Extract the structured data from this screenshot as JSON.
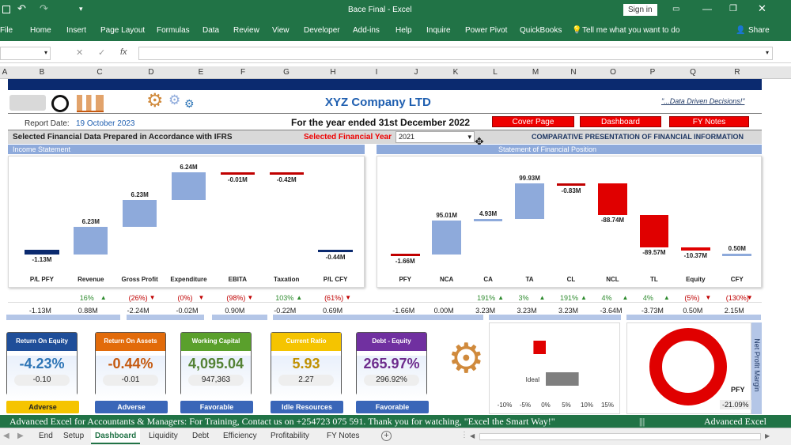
{
  "window": {
    "title": "Bace Final - Excel",
    "signin": "Sign in"
  },
  "ribbon": {
    "tabs": [
      "File",
      "Home",
      "Insert",
      "Page Layout",
      "Formulas",
      "Data",
      "Review",
      "View",
      "Developer",
      "Add-ins",
      "Help",
      "Inquire",
      "Power Pivot",
      "QuickBooks"
    ],
    "tell_me": "Tell me what you want to do",
    "share": "Share"
  },
  "formula_bar": {
    "fx": "fx"
  },
  "columns": [
    "A",
    "B",
    "C",
    "D",
    "E",
    "F",
    "G",
    "H",
    "I",
    "J",
    "K",
    "L",
    "M",
    "N",
    "O",
    "P",
    "Q",
    "R"
  ],
  "header": {
    "company": "XYZ Company LTD",
    "tagline": "\"...Data Driven Decisions!\"",
    "report_date_label": "Report Date:",
    "report_date": "19 October 2023",
    "year_title": "For the year ended 31st December 2022",
    "nav": [
      "Cover Page",
      "Dashboard",
      "FY Notes"
    ]
  },
  "filter": {
    "selected_label": "Selected Financial Data Prepared in Accordance with IFRS",
    "year_label": "Selected Financial Year",
    "year_value": "2021",
    "comparative": "COMPARATIVE PRESENTATION OF FINANCIAL INFORMATION"
  },
  "sections": {
    "income": "Income Statement",
    "position": "Statement of Financial Position"
  },
  "chart_data": [
    {
      "type": "bar",
      "subtype": "waterfall",
      "categories": [
        "P/L PFY",
        "Revenue",
        "Gross Profit",
        "Expenditure",
        "EBITA",
        "Taxation",
        "P/L CFY"
      ],
      "values": [
        -1.13,
        6.23,
        6.23,
        6.24,
        -0.01,
        -0.42,
        -0.44
      ],
      "labels": [
        "-1.13M",
        "6.23M",
        "6.23M",
        "6.24M",
        "-0.01M",
        "-0.42M",
        "-0.44M"
      ],
      "colors": [
        "#0b2a6f",
        "#8eaadb",
        "#8eaadb",
        "#8eaadb",
        "#c00000",
        "#c00000",
        "#0b2a6f"
      ],
      "changes": [
        {
          "text": "",
          "dir": ""
        },
        {
          "text": "16%",
          "dir": "up"
        },
        {
          "text": "(26%)",
          "dir": "down"
        },
        {
          "text": "(0%)",
          "dir": "down"
        },
        {
          "text": "(98%)",
          "dir": "down"
        },
        {
          "text": "103%",
          "dir": "up"
        },
        {
          "text": "(61%)",
          "dir": "down"
        }
      ],
      "prior": [
        "-1.13M",
        "0.88M",
        "-2.24M",
        "-0.02M",
        "0.90M",
        "-0.22M",
        "0.69M"
      ]
    },
    {
      "type": "bar",
      "subtype": "waterfall",
      "categories": [
        "PFY",
        "NCA",
        "CA",
        "TA",
        "CL",
        "NCL",
        "TL",
        "Equity",
        "CFY"
      ],
      "values": [
        -1.66,
        95.01,
        4.93,
        99.93,
        -0.83,
        -88.74,
        -89.57,
        -10.37,
        0.5
      ],
      "labels": [
        "-1.66M",
        "95.01M",
        "4.93M",
        "99.93M",
        "-0.83M",
        "-88.74M",
        "-89.57M",
        "-10.37M",
        "0.50M"
      ],
      "colors": [
        "#c00000",
        "#8eaadb",
        "#8eaadb",
        "#8eaadb",
        "#c00000",
        "#e00000",
        "#e00000",
        "#e00000",
        "#8eaadb"
      ],
      "changes": [
        {
          "text": "",
          "dir": ""
        },
        {
          "text": "",
          "dir": ""
        },
        {
          "text": "191%",
          "dir": "up"
        },
        {
          "text": "3%",
          "dir": "up"
        },
        {
          "text": "191%",
          "dir": "up"
        },
        {
          "text": "4%",
          "dir": "up"
        },
        {
          "text": "4%",
          "dir": "up"
        },
        {
          "text": "(5%)",
          "dir": "down"
        },
        {
          "text": "(130%)",
          "dir": "down"
        }
      ],
      "prior": [
        "-1.66M",
        "0.00M",
        "3.23M",
        "3.23M",
        "3.23M",
        "-3.64M",
        "-3.73M",
        "0.50M",
        "2.15M"
      ]
    },
    {
      "type": "bar",
      "orientation": "horizontal",
      "categories": [
        "",
        "Ideal"
      ],
      "x_ticks": [
        "-10%",
        "-5%",
        "0%",
        "5%",
        "10%",
        "15%"
      ],
      "values": [
        -3,
        8
      ],
      "colors": [
        "#e00000",
        "#7f7f7f"
      ]
    },
    {
      "type": "pie",
      "subtype": "donut",
      "label": "PFY",
      "value_text": "-21.09%",
      "side_title": "Net Profit Margin",
      "colors": [
        "#e00000"
      ]
    }
  ],
  "kpis": [
    {
      "title": "Return On Equity",
      "value": "-4.23%",
      "sub": "-0.10",
      "status": "Adverse",
      "head": "#1f4e99",
      "val": "#2e75b6",
      "pill": "#f5c400",
      "pillText": "#222"
    },
    {
      "title": "Return On Assets",
      "value": "-0.44%",
      "sub": "-0.01",
      "status": "Adverse",
      "head": "#e26b0a",
      "val": "#c55a11",
      "pill": "#3a66b8",
      "pillText": "#fff"
    },
    {
      "title": "Working Capital",
      "value": "4,095.04",
      "sub": "947,363",
      "status": "Favorable",
      "head": "#5aa02c",
      "val": "#548235",
      "pill": "#3a66b8",
      "pillText": "#fff"
    },
    {
      "title": "Current Ratio",
      "value": "5.93",
      "sub": "2.27",
      "status": "Idle Resources",
      "head": "#f5c400",
      "val": "#c09000",
      "pill": "#3a66b8",
      "pillText": "#fff"
    },
    {
      "title": "Debt - Equity",
      "value": "265.97%",
      "sub": "296.92%",
      "status": "Favorable",
      "head": "#7030a0",
      "val": "#6d2b8c",
      "pill": "#3a66b8",
      "pillText": "#fff"
    }
  ],
  "ticker": {
    "text": "Advanced Excel for Accountants & Managers: For Training, Contact us on +254723 075 591. Thank you for watching, \"Excel the Smart Way!\"",
    "sep": "|||",
    "tail": "Advanced Excel"
  },
  "sheet_tabs": [
    "End",
    "Setup",
    "Dashboard",
    "Liquidity",
    "Debt",
    "Efficiency",
    "Profitability",
    "FY Notes"
  ],
  "active_tab": "Dashboard"
}
